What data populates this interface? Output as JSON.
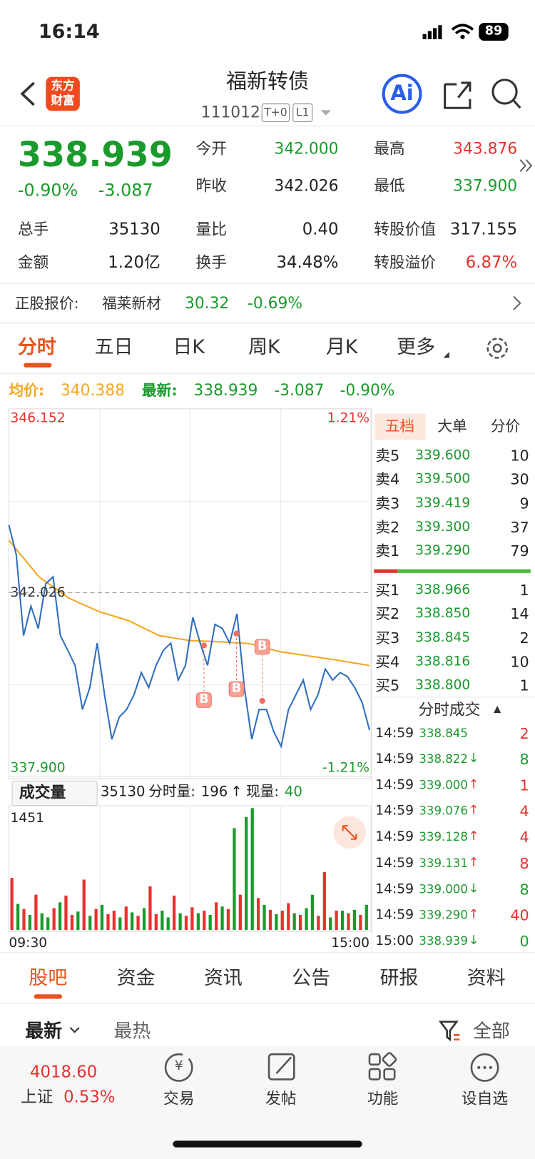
{
  "status_bar": {
    "time": "16:14",
    "battery": "89"
  },
  "header": {
    "logo": [
      "东方",
      "财富"
    ],
    "title": "福新转债",
    "code": "111012",
    "tags": [
      "T+0",
      "L1"
    ],
    "ai": "Ai"
  },
  "quote": {
    "price": "338.939",
    "change_pct": "-0.90%",
    "change": "-3.087",
    "stats_top": [
      [
        {
          "label": "今开",
          "value": "342.000",
          "tone": "down"
        },
        {
          "label": "最高",
          "value": "343.876",
          "tone": "up"
        }
      ],
      [
        {
          "label": "昨收",
          "value": "342.026",
          "tone": "flat"
        },
        {
          "label": "最低",
          "value": "337.900",
          "tone": "down"
        }
      ]
    ],
    "stats": [
      [
        {
          "label": "总手",
          "value": "35130",
          "tone": "flat"
        },
        {
          "label": "量比",
          "value": "0.40",
          "tone": "flat"
        },
        {
          "label": "转股价值",
          "value": "317.155",
          "tone": "flat"
        }
      ],
      [
        {
          "label": "金额",
          "value": "1.20亿",
          "tone": "flat"
        },
        {
          "label": "换手",
          "value": "34.48%",
          "tone": "flat"
        },
        {
          "label": "转股溢价",
          "value": "6.87%",
          "tone": "up"
        }
      ]
    ]
  },
  "underlying": {
    "label": "正股报价:",
    "name": "福莱新材",
    "price": "30.32",
    "change_pct": "-0.69%"
  },
  "tabs": {
    "items": [
      "分时",
      "五日",
      "日K",
      "周K",
      "月K",
      "更多"
    ],
    "active": 0
  },
  "summary": {
    "avg_label": "均价:",
    "avg": "340.388",
    "last_label": "最新:",
    "last": "338.939",
    "change": "-3.087",
    "change_pct": "-0.90%"
  },
  "intraday": {
    "ylim": [
      {
        "value": 337.9,
        "label": "337.900"
      },
      {
        "value": 346.152,
        "label": "346.152"
      }
    ],
    "prev_close": 342.026,
    "pct_labels": [
      "1.21%",
      "-1.21%"
    ],
    "price": [
      343.54,
      342.88,
      341.06,
      341.72,
      341.22,
      342.22,
      342.38,
      341.06,
      340.73,
      340.39,
      339.4,
      339.89,
      340.89,
      339.73,
      338.73,
      339.23,
      339.4,
      339.73,
      340.23,
      339.89,
      340.39,
      340.73,
      340.89,
      340.06,
      340.39,
      341.47,
      340.89,
      340.39,
      341.31,
      341.22,
      340.89,
      341.55,
      339.89,
      338.73,
      339.4,
      339.4,
      338.9,
      338.57,
      339.4,
      339.73,
      340.06,
      339.4,
      339.73,
      340.31,
      340.06,
      340.23,
      340.14,
      339.89,
      339.56,
      338.939
    ],
    "average": [
      343.2,
      342.38,
      341.9,
      341.6,
      341.39,
      341.06,
      340.95,
      340.92,
      340.88,
      340.7,
      340.6,
      340.5,
      340.388
    ],
    "markers": [
      "B",
      "B",
      "B"
    ]
  },
  "volume": {
    "selector": "成交量",
    "total": "35130",
    "minute_label": "分时量:",
    "minute": "196",
    "arrow": "↑",
    "current_label": "现量:",
    "current": "40",
    "ymax": 1451,
    "times": [
      "09:30",
      "15:00"
    ],
    "values": [
      620,
      310,
      250,
      180,
      420,
      200,
      150,
      260,
      330,
      410,
      180,
      220,
      600,
      170,
      250,
      300,
      190,
      230,
      150,
      280,
      210,
      170,
      260,
      520,
      190,
      230,
      150,
      410,
      200,
      170,
      270,
      200,
      230,
      180,
      330,
      280,
      250,
      1213,
      420,
      1345,
      1451,
      380,
      300,
      240,
      190,
      230,
      320,
      200,
      180,
      260,
      420,
      170,
      690,
      150,
      230,
      230,
      200,
      240,
      180,
      300
    ],
    "directions": [
      "up",
      "down",
      "up",
      "down",
      "up",
      "down",
      "down",
      "up",
      "down",
      "up",
      "up",
      "down",
      "up",
      "down",
      "up",
      "down",
      "up",
      "up",
      "down",
      "up",
      "down",
      "up",
      "down",
      "up",
      "up",
      "down",
      "down",
      "up",
      "down",
      "up",
      "up",
      "down",
      "up",
      "down",
      "up",
      "down",
      "up",
      "down",
      "up",
      "down",
      "down",
      "up",
      "down",
      "up",
      "down",
      "up",
      "up",
      "down",
      "up",
      "down",
      "down",
      "up",
      "up",
      "down",
      "up",
      "down",
      "up",
      "down",
      "up",
      "down"
    ]
  },
  "order_book": {
    "tabs": [
      "五档",
      "大单",
      "分价"
    ],
    "asks": [
      {
        "label": "卖5",
        "price": "339.600",
        "volume": "10"
      },
      {
        "label": "卖4",
        "price": "339.500",
        "volume": "30"
      },
      {
        "label": "卖3",
        "price": "339.419",
        "volume": "9"
      },
      {
        "label": "卖2",
        "price": "339.300",
        "volume": "37"
      },
      {
        "label": "卖1",
        "price": "339.290",
        "volume": "79"
      }
    ],
    "bids": [
      {
        "label": "买1",
        "price": "338.966",
        "volume": "1"
      },
      {
        "label": "买2",
        "price": "338.850",
        "volume": "14"
      },
      {
        "label": "买3",
        "price": "338.845",
        "volume": "2"
      },
      {
        "label": "买4",
        "price": "338.816",
        "volume": "10"
      },
      {
        "label": "买5",
        "price": "338.800",
        "volume": "1"
      }
    ]
  },
  "trades": {
    "title": "分时成交",
    "toggle": "▲",
    "rows": [
      {
        "time": "14:59",
        "price": "338.845",
        "volume": "2",
        "tone": "up"
      },
      {
        "time": "14:59",
        "price": "338.822",
        "arrow": "↓",
        "volume": "8",
        "tone": "down"
      },
      {
        "time": "14:59",
        "price": "339.000",
        "arrow": "↑",
        "volume": "1",
        "tone": "up"
      },
      {
        "time": "14:59",
        "price": "339.076",
        "arrow": "↑",
        "volume": "4",
        "tone": "up"
      },
      {
        "time": "14:59",
        "price": "339.128",
        "arrow": "↑",
        "volume": "4",
        "tone": "up"
      },
      {
        "time": "14:59",
        "price": "339.131",
        "arrow": "↑",
        "volume": "8",
        "tone": "up"
      },
      {
        "time": "14:59",
        "price": "339.000",
        "arrow": "↓",
        "volume": "8",
        "tone": "down"
      },
      {
        "time": "14:59",
        "price": "339.290",
        "arrow": "↑",
        "volume": "40",
        "tone": "up"
      },
      {
        "time": "15:00",
        "price": "338.939",
        "arrow": "↓",
        "volume": "0",
        "tone": "down"
      }
    ]
  },
  "bottom_tabs": {
    "items": [
      "股吧",
      "资金",
      "资讯",
      "公告",
      "研报",
      "资料"
    ],
    "active": 0
  },
  "feed_filter": {
    "sort": [
      "最新",
      "最热"
    ],
    "scope": "全部"
  },
  "nav": {
    "index_value": "4018.60",
    "index_name": "上证",
    "index_change": "0.53%",
    "items": [
      "交易",
      "发帖",
      "功能",
      "设自选"
    ],
    "trade_icon": "¥"
  }
}
